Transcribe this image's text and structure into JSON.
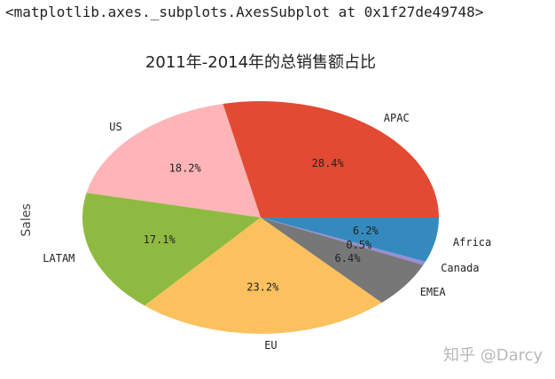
{
  "output_repr": "<matplotlib.axes._subplots.AxesSubplot at 0x1f27de49748>",
  "watermark": "知乎 @Darcy",
  "chart_data": {
    "type": "pie",
    "title": "2011年-2014年的总销售额占比",
    "ylabel": "Sales",
    "categories": [
      "APAC",
      "US",
      "LATAM",
      "EU",
      "EMEA",
      "Canada",
      "Africa"
    ],
    "values": [
      28.4,
      18.2,
      17.1,
      23.2,
      6.4,
      0.5,
      6.2
    ],
    "value_labels": [
      "28.4%",
      "18.2%",
      "17.1%",
      "23.2%",
      "6.4%",
      "0.5%",
      "6.2%"
    ],
    "colors": [
      "#e24a33",
      "#ffb5b8",
      "#8eba42",
      "#fbc15e",
      "#777777",
      "#988ed5",
      "#348abd"
    ],
    "start_angle_deg": 0,
    "direction": "counterclockwise"
  }
}
